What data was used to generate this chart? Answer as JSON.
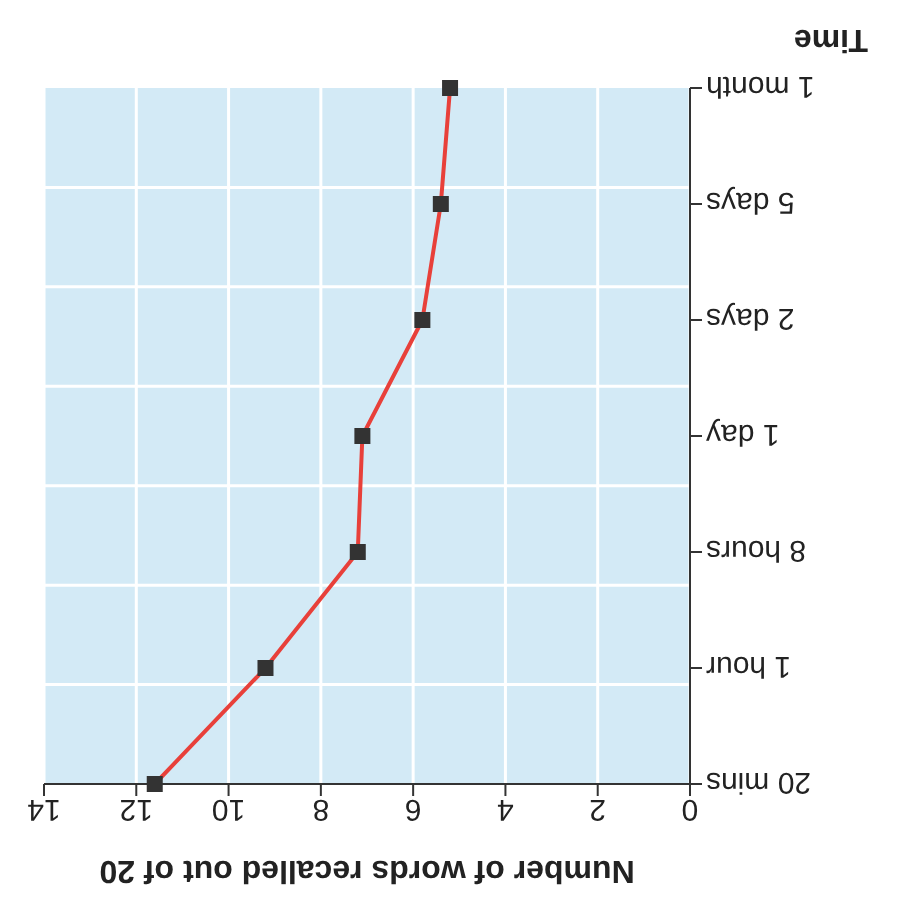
{
  "chart_data": {
    "type": "line",
    "orientation": "horizontal",
    "xlabel": "Number of words recalled out of 20",
    "ylabel": "Time",
    "categories": [
      "1 month",
      "5 days",
      "2 days",
      "1 day",
      "8 hours",
      "1 hour",
      "20 mins"
    ],
    "series": [
      {
        "color": "#e8403a",
        "values": [
          5.2,
          5.4,
          5.8,
          7.1,
          7.2,
          9.2,
          11.6
        ]
      }
    ],
    "xlim": [
      14,
      0
    ],
    "xticks": [
      0,
      2,
      4,
      6,
      8,
      10,
      12,
      14
    ],
    "grid": true,
    "marker": "square",
    "line_style": "solid"
  }
}
